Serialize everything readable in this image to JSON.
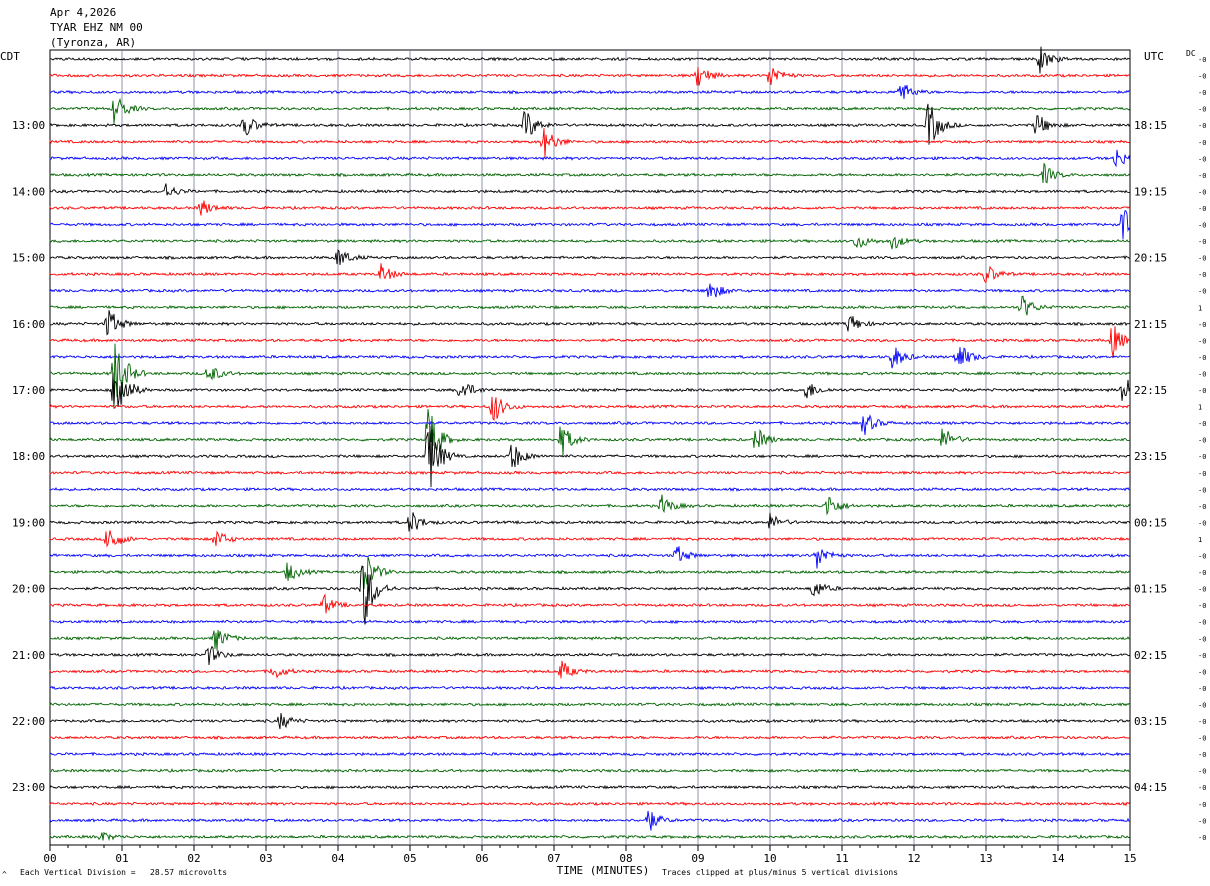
{
  "header": {
    "date": "Apr 4,2026",
    "station": "TYAR EHZ NM 00",
    "location": "(Tyronza, AR)"
  },
  "left_tz": "CDT",
  "right_tz": "UTC",
  "dc_label": "DC",
  "footer": {
    "vertical_division": "Each Vertical Division =   28.57 microvolts",
    "clipping_note": "Traces clipped at plus/minus 5 vertical divisions",
    "corner_mark": "^"
  },
  "colors": {
    "trace_cycle": [
      "#000000",
      "#ff0000",
      "#0000ff",
      "#006400"
    ],
    "grid": "#6e7a9a",
    "background": "#ffffff"
  },
  "chart_data": {
    "type": "line",
    "title": "",
    "xlabel": "TIME (MINUTES)",
    "ylabel": "",
    "x_range": [
      0,
      15
    ],
    "x_ticks": [
      "00",
      "01",
      "02",
      "03",
      "04",
      "05",
      "06",
      "07",
      "08",
      "09",
      "10",
      "11",
      "12",
      "13",
      "14",
      "15"
    ],
    "grid": true,
    "trace_count": 48,
    "left_labels": [
      {
        "trace": 4,
        "text": "13:00"
      },
      {
        "trace": 8,
        "text": "14:00"
      },
      {
        "trace": 12,
        "text": "15:00"
      },
      {
        "trace": 16,
        "text": "16:00"
      },
      {
        "trace": 20,
        "text": "17:00"
      },
      {
        "trace": 24,
        "text": "18:00"
      },
      {
        "trace": 28,
        "text": "19:00"
      },
      {
        "trace": 32,
        "text": "20:00"
      },
      {
        "trace": 36,
        "text": "21:00"
      },
      {
        "trace": 40,
        "text": "22:00"
      },
      {
        "trace": 44,
        "text": "23:00"
      }
    ],
    "right_labels": [
      {
        "trace": 4,
        "text": "18:15"
      },
      {
        "trace": 8,
        "text": "19:15"
      },
      {
        "trace": 12,
        "text": "20:15"
      },
      {
        "trace": 16,
        "text": "21:15"
      },
      {
        "trace": 20,
        "text": "22:15"
      },
      {
        "trace": 24,
        "text": "23:15"
      },
      {
        "trace": 28,
        "text": "00:15"
      },
      {
        "trace": 32,
        "text": "01:15"
      },
      {
        "trace": 36,
        "text": "02:15"
      },
      {
        "trace": 40,
        "text": "03:15"
      },
      {
        "trace": 44,
        "text": "04:15"
      }
    ],
    "dc_offsets": [
      "-0",
      "-0",
      "-0",
      "-0",
      "-0",
      "-0",
      "-0",
      "-0",
      "-0",
      "-0",
      "-0",
      "-0",
      "-0",
      "-0",
      "-0",
      "1",
      "-0",
      "-0",
      "-0",
      "-0",
      "-0",
      "1",
      "-0",
      "-0",
      "-0",
      "-0",
      "-0",
      "-0",
      "-0",
      "1",
      "-0",
      "-0",
      "-0",
      "-0",
      "-0",
      "-0",
      "-0",
      "-0",
      "-0",
      "-0",
      "-0",
      "-0",
      "-0",
      "-0",
      "-0",
      "-0",
      "-0",
      "-0"
    ],
    "events": [
      {
        "trace": 19,
        "minute": 0.9,
        "amplitude": 5
      },
      {
        "trace": 20,
        "minute": 0.9,
        "amplitude": 5
      },
      {
        "trace": 24,
        "minute": 5.25,
        "amplitude": 5
      },
      {
        "trace": 23,
        "minute": 5.25,
        "amplitude": 4
      },
      {
        "trace": 32,
        "minute": 4.35,
        "amplitude": 5
      },
      {
        "trace": 31,
        "minute": 4.35,
        "amplitude": 3
      },
      {
        "trace": 4,
        "minute": 12.2,
        "amplitude": 3
      },
      {
        "trace": 4,
        "minute": 6.6,
        "amplitude": 2
      },
      {
        "trace": 5,
        "minute": 6.85,
        "amplitude": 2
      },
      {
        "trace": 3,
        "minute": 0.9,
        "amplitude": 2
      },
      {
        "trace": 10,
        "minute": 14.9,
        "amplitude": 2
      },
      {
        "trace": 20,
        "minute": 14.9,
        "amplitude": 2
      },
      {
        "trace": 21,
        "minute": 6.15,
        "amplitude": 2
      },
      {
        "trace": 23,
        "minute": 7.1,
        "amplitude": 2
      },
      {
        "trace": 17,
        "minute": 14.75,
        "amplitude": 2
      },
      {
        "trace": 18,
        "minute": 12.6,
        "amplitude": 2
      },
      {
        "trace": 16,
        "minute": 0.8,
        "amplitude": 2
      },
      {
        "trace": 29,
        "minute": 0.8,
        "amplitude": 2
      },
      {
        "trace": 8,
        "minute": 1.6,
        "amplitude": 1
      },
      {
        "trace": 9,
        "minute": 2.1,
        "amplitude": 1
      },
      {
        "trace": 11,
        "minute": 11.2,
        "amplitude": 1
      },
      {
        "trace": 11,
        "minute": 11.7,
        "amplitude": 1
      },
      {
        "trace": 14,
        "minute": 9.15,
        "amplitude": 1.5
      },
      {
        "trace": 15,
        "minute": 13.5,
        "amplitude": 1.5
      },
      {
        "trace": 0,
        "minute": 13.75,
        "amplitude": 1.5
      },
      {
        "trace": 1,
        "minute": 9.0,
        "amplitude": 1.5
      },
      {
        "trace": 1,
        "minute": 10.0,
        "amplitude": 1.5
      },
      {
        "trace": 2,
        "minute": 11.8,
        "amplitude": 1.5
      },
      {
        "trace": 4,
        "minute": 13.7,
        "amplitude": 1.5
      },
      {
        "trace": 4,
        "minute": 2.7,
        "amplitude": 1.5
      },
      {
        "trace": 6,
        "minute": 14.8,
        "amplitude": 1.2
      },
      {
        "trace": 7,
        "minute": 13.8,
        "amplitude": 1.2
      },
      {
        "trace": 12,
        "minute": 4.0,
        "amplitude": 1.2
      },
      {
        "trace": 13,
        "minute": 4.6,
        "amplitude": 1.2
      },
      {
        "trace": 13,
        "minute": 13.0,
        "amplitude": 1.2
      },
      {
        "trace": 16,
        "minute": 11.1,
        "amplitude": 1.2
      },
      {
        "trace": 18,
        "minute": 11.7,
        "amplitude": 1.5
      },
      {
        "trace": 19,
        "minute": 2.2,
        "amplitude": 1.2
      },
      {
        "trace": 20,
        "minute": 5.7,
        "amplitude": 1.5
      },
      {
        "trace": 20,
        "minute": 10.5,
        "amplitude": 1.2
      },
      {
        "trace": 22,
        "minute": 11.3,
        "amplitude": 1.5
      },
      {
        "trace": 23,
        "minute": 9.8,
        "amplitude": 1.5
      },
      {
        "trace": 23,
        "minute": 12.4,
        "amplitude": 1.5
      },
      {
        "trace": 24,
        "minute": 6.4,
        "amplitude": 2
      },
      {
        "trace": 27,
        "minute": 10.8,
        "amplitude": 1.5
      },
      {
        "trace": 27,
        "minute": 8.5,
        "amplitude": 1.2
      },
      {
        "trace": 28,
        "minute": 5.0,
        "amplitude": 1.5
      },
      {
        "trace": 28,
        "minute": 10.0,
        "amplitude": 1
      },
      {
        "trace": 29,
        "minute": 2.3,
        "amplitude": 1.2
      },
      {
        "trace": 30,
        "minute": 10.65,
        "amplitude": 1.5
      },
      {
        "trace": 30,
        "minute": 8.7,
        "amplitude": 1.2
      },
      {
        "trace": 31,
        "minute": 3.3,
        "amplitude": 1.2
      },
      {
        "trace": 32,
        "minute": 10.6,
        "amplitude": 1.2
      },
      {
        "trace": 33,
        "minute": 3.8,
        "amplitude": 1.2
      },
      {
        "trace": 35,
        "minute": 2.3,
        "amplitude": 1.5
      },
      {
        "trace": 36,
        "minute": 2.2,
        "amplitude": 1.2
      },
      {
        "trace": 37,
        "minute": 7.1,
        "amplitude": 1.2
      },
      {
        "trace": 37,
        "minute": 3.1,
        "amplitude": 1
      },
      {
        "trace": 40,
        "minute": 3.2,
        "amplitude": 1
      },
      {
        "trace": 46,
        "minute": 8.3,
        "amplitude": 1.5
      },
      {
        "trace": 47,
        "minute": 0.7,
        "amplitude": 0.6
      }
    ]
  }
}
